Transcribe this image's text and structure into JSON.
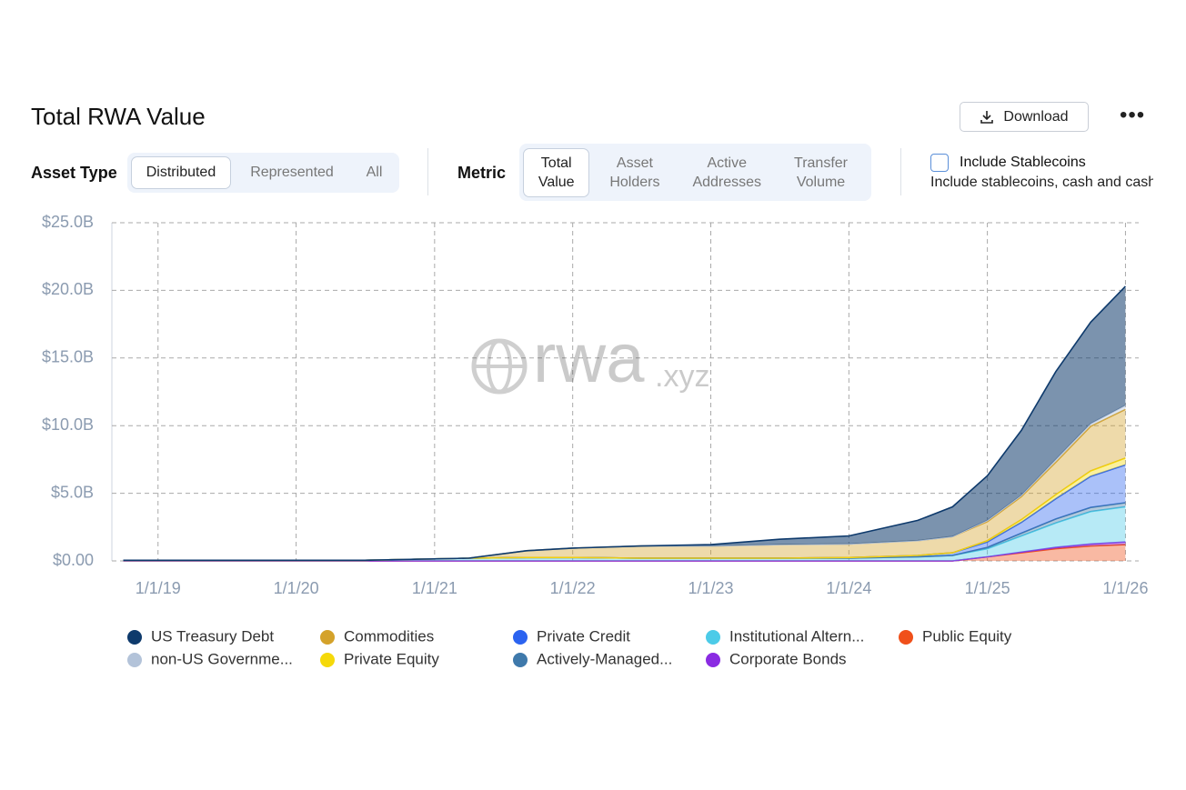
{
  "header": {
    "title": "Total RWA Value",
    "download": "Download",
    "more": "•••"
  },
  "controls": {
    "asset_type": {
      "label": "Asset Type",
      "options": [
        "Distributed",
        "Represented",
        "All"
      ],
      "selected": 0
    },
    "metric": {
      "label": "Metric",
      "options": [
        "Total Value",
        "Asset Holders",
        "Active Addresses",
        "Transfer Volume"
      ],
      "selected": 0
    },
    "stablecoins": {
      "label": "Include Stablecoins",
      "description": "Include stablecoins, cash and cash"
    }
  },
  "chart_data": {
    "type": "stacked_area",
    "watermark": [
      "rwa",
      ".xyz"
    ],
    "x": [
      "2018-10-01",
      "2019-07-01",
      "2020-07-01",
      "2021-04-01",
      "2021-09-01",
      "2022-01-01",
      "2022-07-01",
      "2023-01-01",
      "2023-07-01",
      "2024-01-01",
      "2024-07-01",
      "2024-10-01",
      "2025-01-01",
      "2025-04-01",
      "2025-07-01",
      "2025-10-01",
      "2026-01-01"
    ],
    "xlim": [
      "2018-09-01",
      "2026-02-05"
    ],
    "xticks": [
      {
        "value": "2019-01-01",
        "label": "1/1/19"
      },
      {
        "value": "2020-01-01",
        "label": "1/1/20"
      },
      {
        "value": "2021-01-01",
        "label": "1/1/21"
      },
      {
        "value": "2022-01-01",
        "label": "1/1/22"
      },
      {
        "value": "2023-01-01",
        "label": "1/1/23"
      },
      {
        "value": "2024-01-01",
        "label": "1/1/24"
      },
      {
        "value": "2025-01-01",
        "label": "1/1/25"
      },
      {
        "value": "2026-01-01",
        "label": "1/1/26"
      }
    ],
    "ylim": [
      0,
      25
    ],
    "yticks": [
      {
        "value": 0,
        "label": "$0.00"
      },
      {
        "value": 5,
        "label": "$5.0B"
      },
      {
        "value": 10,
        "label": "$10.0B"
      },
      {
        "value": 15,
        "label": "$15.0B"
      },
      {
        "value": 20,
        "label": "$20.0B"
      },
      {
        "value": 25,
        "label": "$25.0B"
      }
    ],
    "grid": true,
    "series": [
      {
        "name": "US Treasury Debt",
        "color": "#0e3a6c",
        "values": [
          0,
          0,
          0,
          0,
          0,
          0,
          0,
          0.1,
          0.4,
          0.6,
          1.5,
          2.2,
          3.3,
          4.8,
          6.5,
          7.5,
          8.8
        ]
      },
      {
        "name": "non-US Governme...",
        "color": "#b3c3d9",
        "values": [
          0,
          0,
          0,
          0,
          0,
          0,
          0,
          0,
          0,
          0,
          0,
          0,
          0.1,
          0.1,
          0.2,
          0.2,
          0.3
        ]
      },
      {
        "name": "Commodities",
        "color": "#d4a22a",
        "values": [
          0,
          0,
          0,
          0,
          0.5,
          0.7,
          0.9,
          0.9,
          1.0,
          1.0,
          1.1,
          1.2,
          1.4,
          1.7,
          2.4,
          3.3,
          3.6
        ]
      },
      {
        "name": "Private Equity",
        "color": "#f5d90a",
        "values": [
          0,
          0,
          0,
          0,
          0,
          0,
          0,
          0,
          0,
          0,
          0,
          0,
          0.1,
          0.2,
          0.3,
          0.4,
          0.5
        ]
      },
      {
        "name": "Private Credit",
        "color": "#2b63f0",
        "values": [
          0,
          0,
          0,
          0,
          0,
          0,
          0,
          0,
          0,
          0.05,
          0.1,
          0.2,
          0.4,
          0.8,
          1.5,
          2.3,
          2.8
        ]
      },
      {
        "name": "Actively-Managed...",
        "color": "#3f79ab",
        "values": [
          0,
          0,
          0,
          0,
          0,
          0,
          0,
          0,
          0,
          0,
          0,
          0,
          0.1,
          0.2,
          0.3,
          0.3,
          0.3
        ]
      },
      {
        "name": "Institutional Altern...",
        "color": "#4ccbe8",
        "values": [
          0.05,
          0.05,
          0.05,
          0.2,
          0.25,
          0.25,
          0.2,
          0.2,
          0.2,
          0.2,
          0.3,
          0.4,
          0.6,
          1.2,
          1.8,
          2.4,
          2.6
        ]
      },
      {
        "name": "Corporate Bonds",
        "color": "#8a2be2",
        "values": [
          0,
          0,
          0,
          0,
          0,
          0,
          0,
          0,
          0,
          0,
          0,
          0,
          0,
          0.05,
          0.1,
          0.15,
          0.2
        ]
      },
      {
        "name": "Public Equity",
        "color": "#f0501a",
        "values": [
          0,
          0,
          0,
          0,
          0,
          0,
          0,
          0,
          0,
          0,
          0,
          0,
          0.3,
          0.6,
          0.9,
          1.1,
          1.2
        ]
      }
    ]
  }
}
